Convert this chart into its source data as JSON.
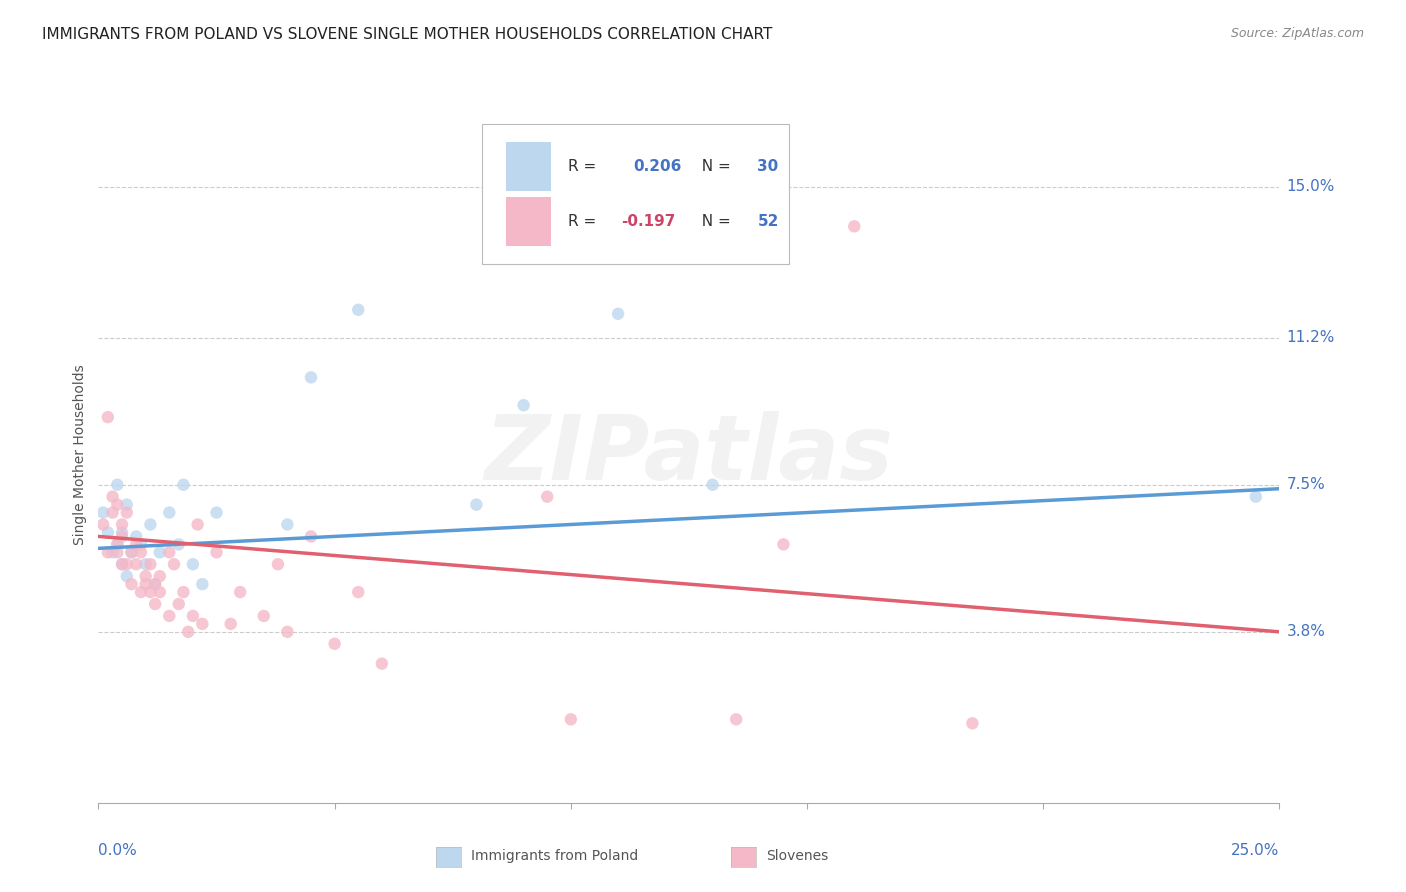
{
  "title": "IMMIGRANTS FROM POLAND VS SLOVENE SINGLE MOTHER HOUSEHOLDS CORRELATION CHART",
  "source": "Source: ZipAtlas.com",
  "ylabel": "Single Mother Households",
  "ytick_labels": [
    "3.8%",
    "7.5%",
    "11.2%",
    "15.0%"
  ],
  "ytick_values": [
    0.038,
    0.075,
    0.112,
    0.15
  ],
  "xlim": [
    0.0,
    0.25
  ],
  "ylim": [
    -0.005,
    0.17
  ],
  "poland_scatter_x": [
    0.001,
    0.002,
    0.003,
    0.004,
    0.004,
    0.005,
    0.005,
    0.006,
    0.006,
    0.007,
    0.008,
    0.009,
    0.01,
    0.011,
    0.012,
    0.013,
    0.015,
    0.017,
    0.018,
    0.02,
    0.022,
    0.025,
    0.04,
    0.045,
    0.055,
    0.08,
    0.09,
    0.11,
    0.13,
    0.245
  ],
  "poland_scatter_y": [
    0.068,
    0.063,
    0.058,
    0.075,
    0.06,
    0.063,
    0.055,
    0.07,
    0.052,
    0.058,
    0.062,
    0.06,
    0.055,
    0.065,
    0.05,
    0.058,
    0.068,
    0.06,
    0.075,
    0.055,
    0.05,
    0.068,
    0.065,
    0.102,
    0.119,
    0.07,
    0.095,
    0.118,
    0.075,
    0.072
  ],
  "slovene_scatter_x": [
    0.001,
    0.002,
    0.002,
    0.003,
    0.003,
    0.004,
    0.004,
    0.004,
    0.005,
    0.005,
    0.005,
    0.006,
    0.006,
    0.007,
    0.007,
    0.008,
    0.008,
    0.009,
    0.009,
    0.01,
    0.01,
    0.011,
    0.011,
    0.012,
    0.012,
    0.013,
    0.013,
    0.015,
    0.015,
    0.016,
    0.017,
    0.018,
    0.019,
    0.02,
    0.021,
    0.022,
    0.025,
    0.028,
    0.03,
    0.035,
    0.038,
    0.04,
    0.045,
    0.05,
    0.055,
    0.06,
    0.095,
    0.1,
    0.135,
    0.145,
    0.16,
    0.185
  ],
  "slovene_scatter_y": [
    0.065,
    0.058,
    0.092,
    0.072,
    0.068,
    0.07,
    0.06,
    0.058,
    0.065,
    0.055,
    0.062,
    0.068,
    0.055,
    0.058,
    0.05,
    0.06,
    0.055,
    0.058,
    0.048,
    0.052,
    0.05,
    0.048,
    0.055,
    0.05,
    0.045,
    0.052,
    0.048,
    0.058,
    0.042,
    0.055,
    0.045,
    0.048,
    0.038,
    0.042,
    0.065,
    0.04,
    0.058,
    0.04,
    0.048,
    0.042,
    0.055,
    0.038,
    0.062,
    0.035,
    0.048,
    0.03,
    0.072,
    0.016,
    0.016,
    0.06,
    0.14,
    0.015
  ],
  "poland_line_x": [
    0.0,
    0.25
  ],
  "poland_line_y": [
    0.059,
    0.074
  ],
  "slovene_line_x": [
    0.0,
    0.25
  ],
  "slovene_line_y": [
    0.062,
    0.038
  ],
  "poland_line_color": "#5b9bd5",
  "poland_scatter_color": "#bdd7ee",
  "slovene_line_color": "#e06070",
  "slovene_scatter_color": "#f4b8c8",
  "background_color": "#ffffff",
  "grid_color": "#cccccc",
  "title_color": "#222222",
  "source_color": "#888888",
  "ytick_color": "#4472c4",
  "ylabel_color": "#555555",
  "scatter_size": 80,
  "scatter_alpha": 0.8,
  "watermark_text": "ZIPatlas",
  "watermark_color": "#aaaaaa",
  "watermark_alpha": 0.15,
  "watermark_fontsize": 65,
  "legend_R_color": "#333333",
  "legend_val_color": "#4472c4",
  "legend_neg_color": "#cc4466"
}
